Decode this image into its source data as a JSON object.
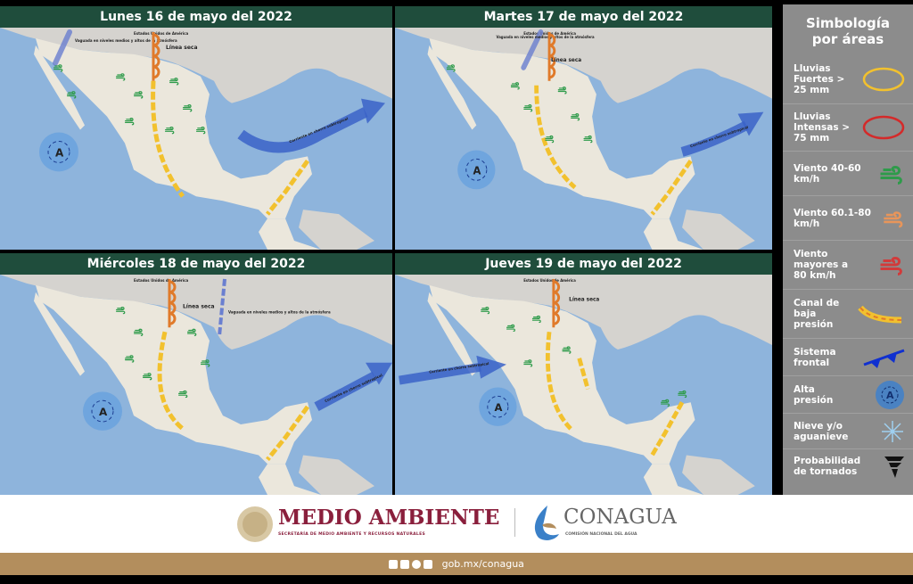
{
  "panels": [
    {
      "title": "Lunes 16 de mayo del 2022",
      "labels": {
        "trough": "Vaguada en niveles medios y altos de la atmósfera",
        "dryline": "Línea seca",
        "jet": "Corriente en chorro subtropical",
        "usa": "Estados Unidos de América"
      }
    },
    {
      "title": "Martes 17 de mayo del 2022",
      "labels": {
        "trough": "Vaguada en niveles medios y altos de la atmósfera",
        "dryline": "Línea seca",
        "jet": "Corriente en chorro subtropical",
        "usa": "Estados Unidos de América"
      }
    },
    {
      "title": "Miércoles 18 de mayo del 2022",
      "labels": {
        "trough": "Vaguada en niveles medios y altos de la atmósfera",
        "dryline": "Línea seca",
        "jet": "Corriente en chorro subtropical",
        "usa": "Estados Unidos de América"
      }
    },
    {
      "title": "Jueves 19 de mayo del 2022",
      "labels": {
        "trough": "",
        "dryline": "Línea seca",
        "jet": "Corriente en chorro subtropical",
        "usa": "Estados Unidos de América"
      }
    }
  ],
  "high_pressure_symbol": "A",
  "legend": {
    "title_line1": "Simbología",
    "title_line2": "por áreas",
    "items": [
      {
        "label": "Lluvias Fuertes > 25 mm",
        "icon": "yellow-ellipse",
        "color": "#f2c12e"
      },
      {
        "label": "Lluvias Intensas > 75 mm",
        "icon": "red-ellipse",
        "color": "#d42a2a"
      },
      {
        "label": "Viento 40-60 km/h",
        "icon": "wind",
        "color": "#2e9b4a"
      },
      {
        "label": "Viento 60.1-80 km/h",
        "icon": "wind",
        "color": "#e8955a"
      },
      {
        "label": "Viento mayores a 80 km/h",
        "icon": "wind",
        "color": "#d23a3a"
      },
      {
        "label": "Canal de baja presión",
        "icon": "trough-line",
        "color": "#f2c12e"
      },
      {
        "label": "Sistema frontal",
        "icon": "cold-front",
        "color": "#1030d0"
      },
      {
        "label": "Alta presión",
        "icon": "high-pressure",
        "color": "#3a7fd0"
      },
      {
        "label": "Nieve y/o aguanieve",
        "icon": "snowflake",
        "color": "#9fd0f0"
      },
      {
        "label": "Probabilidad de tornados",
        "icon": "tornado",
        "color": "#111111"
      }
    ]
  },
  "footer": {
    "brand1": "MEDIO AMBIENTE",
    "brand1_sub": "SECRETARÍA DE MEDIO AMBIENTE Y RECURSOS NATURALES",
    "brand2": "CONAGUA",
    "brand2_sub": "COMISIÓN NACIONAL DEL AGUA",
    "url": "gob.mx/conagua",
    "social": [
      "facebook",
      "twitter",
      "instagram",
      "youtube"
    ]
  },
  "colors": {
    "header": "#1f4d3c",
    "ocean": "#8eb4dc",
    "land": "#ebe7dc",
    "legend_bg": "#8c8c8c",
    "gold": "#b38e5d",
    "brand_red": "#8a1f3c"
  }
}
